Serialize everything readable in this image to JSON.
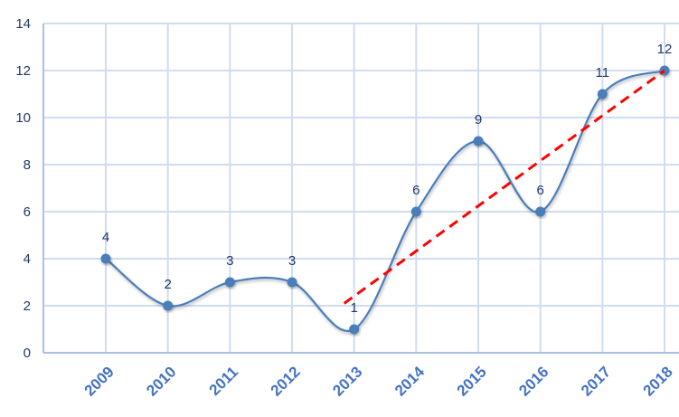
{
  "chart_data": {
    "type": "line",
    "title": "",
    "xlabel": "",
    "ylabel": "",
    "categories": [
      "2009",
      "2010",
      "2011",
      "2012",
      "2013",
      "2014",
      "2015",
      "2016",
      "2017",
      "2018"
    ],
    "series": [
      {
        "values": [
          4,
          2,
          3,
          3,
          1,
          6,
          9,
          6,
          11,
          12
        ],
        "color": "#4a7ebb",
        "smooth": true,
        "markers": true,
        "data_labels": true
      }
    ],
    "trendline": {
      "type": "linear",
      "from": {
        "category": "2013",
        "value": 2.1
      },
      "to": {
        "category": "2018",
        "value": 12
      },
      "color": "#ff0000",
      "style": "dashed"
    },
    "ylim": [
      0,
      14
    ],
    "yticks": [
      0,
      2,
      4,
      6,
      8,
      10,
      12,
      14
    ],
    "grid": true,
    "legend": "none",
    "colors": {
      "grid": "#d0dcf0",
      "axis": "#a9c1e8",
      "tick_text": "#1f3864",
      "category_text": "#4472c4"
    }
  }
}
